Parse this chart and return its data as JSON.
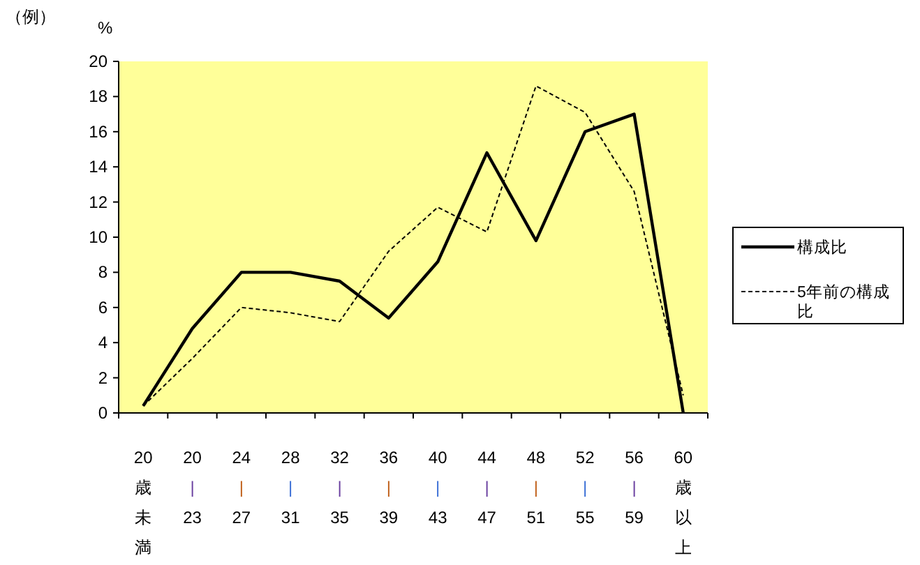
{
  "chart_data": {
    "type": "line",
    "title": "（例）",
    "ylabel": "%",
    "categories": [
      "20歳未満",
      "20|23",
      "24|27",
      "28|31",
      "32|35",
      "36|39",
      "40|43",
      "44|47",
      "48|51",
      "52|55",
      "56|59",
      "60歳以上"
    ],
    "series": [
      {
        "name": "構成比",
        "color": "#000000",
        "line_style": "solid",
        "values": [
          0.4,
          4.8,
          8.0,
          8.0,
          7.5,
          5.4,
          8.6,
          14.8,
          9.8,
          16.0,
          17.0,
          0
        ]
      },
      {
        "name": "5年前の構成比",
        "color": "#000000",
        "line_style": "dashed",
        "values": [
          0.4,
          3.1,
          6.0,
          5.7,
          5.2,
          9.2,
          11.7,
          10.3,
          18.6,
          17.1,
          12.6,
          1.0
        ]
      }
    ],
    "ylim": [
      0,
      20
    ],
    "yticks": [
      0,
      2,
      4,
      6,
      8,
      10,
      12,
      14,
      16,
      18,
      20
    ],
    "grid": false,
    "legend": "right",
    "marker": "none"
  }
}
